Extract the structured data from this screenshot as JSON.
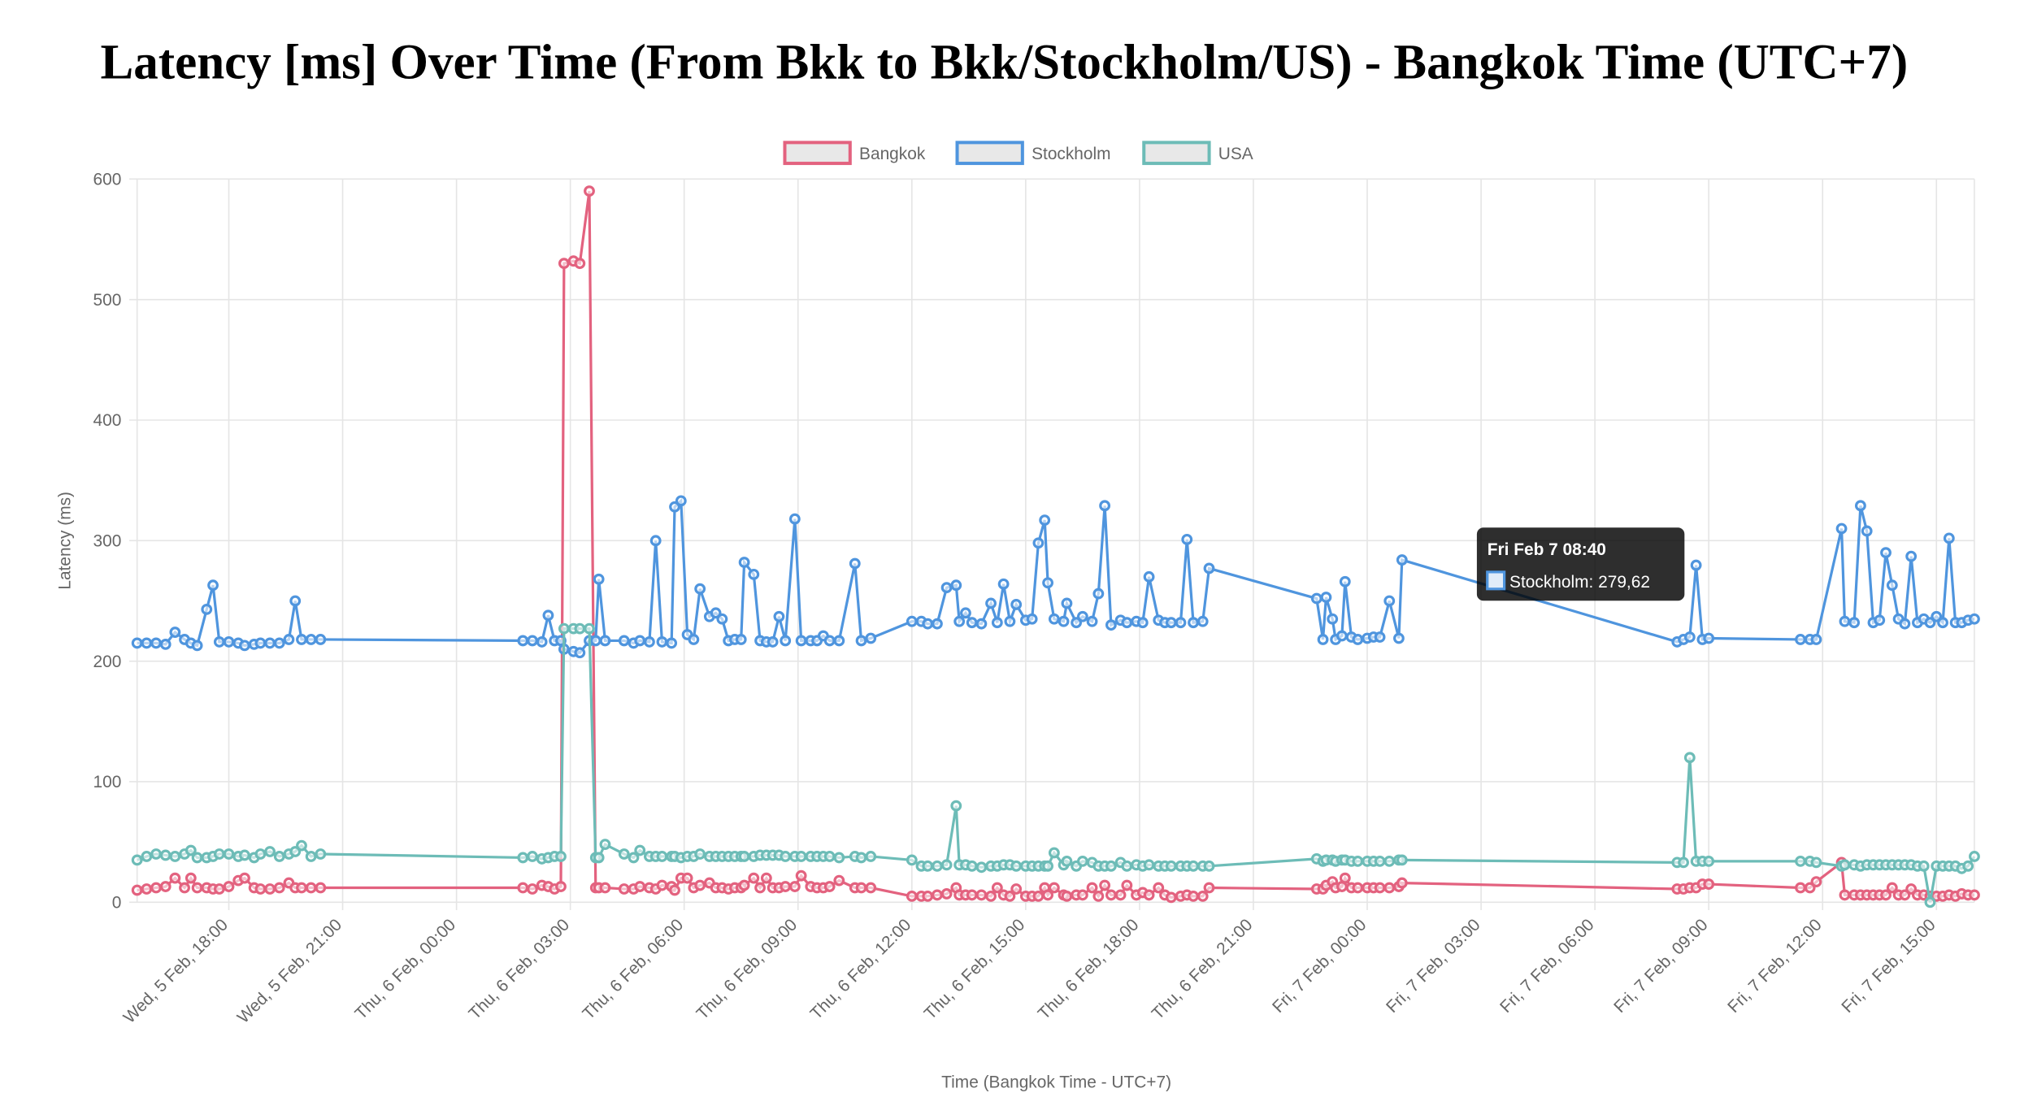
{
  "chart_data": {
    "type": "line",
    "title": "Latency [ms] Over Time (From Bkk to Bkk/Stockholm/US) - Bangkok Time (UTC+7)",
    "x_label": "Time (Bangkok Time - UTC+7)",
    "y_label": "Latency (ms)",
    "legend": "top",
    "grid": true,
    "x": [
      "Feb 5 15:35",
      "Feb 5 15:50",
      "Feb 5 16:05",
      "Feb 5 16:20",
      "Feb 5 16:35",
      "Feb 5 16:50",
      "Feb 5 17:00",
      "Feb 5 17:10",
      "Feb 5 17:25",
      "Feb 5 17:35",
      "Feb 5 17:45",
      "Feb 5 18:00",
      "Feb 5 18:15",
      "Feb 5 18:25",
      "Feb 5 18:40",
      "Feb 5 18:50",
      "Feb 5 19:05",
      "Feb 5 19:20",
      "Feb 5 19:35",
      "Feb 5 19:45",
      "Feb 5 19:55",
      "Feb 5 20:10",
      "Feb 5 20:25",
      "Feb 6 01:45",
      "Feb 6 02:00",
      "Feb 6 02:15",
      "Feb 6 02:25",
      "Feb 6 02:35",
      "Feb 6 02:45",
      "Feb 6 02:50",
      "Feb 6 03:05",
      "Feb 6 03:15",
      "Feb 6 03:30",
      "Feb 6 03:40",
      "Feb 6 03:45",
      "Feb 6 03:55",
      "Feb 6 04:25",
      "Feb 6 04:40",
      "Feb 6 04:50",
      "Feb 6 05:05",
      "Feb 6 05:15",
      "Feb 6 05:25",
      "Feb 6 05:40",
      "Feb 6 05:45",
      "Feb 6 05:55",
      "Feb 6 06:05",
      "Feb 6 06:15",
      "Feb 6 06:25",
      "Feb 6 06:40",
      "Feb 6 06:50",
      "Feb 6 07:00",
      "Feb 6 07:10",
      "Feb 6 07:20",
      "Feb 6 07:30",
      "Feb 6 07:35",
      "Feb 6 07:50",
      "Feb 6 08:00",
      "Feb 6 08:10",
      "Feb 6 08:20",
      "Feb 6 08:30",
      "Feb 6 08:40",
      "Feb 6 08:55",
      "Feb 6 09:05",
      "Feb 6 09:20",
      "Feb 6 09:30",
      "Feb 6 09:40",
      "Feb 6 09:50",
      "Feb 6 10:05",
      "Feb 6 10:30",
      "Feb 6 10:40",
      "Feb 6 10:55",
      "Feb 6 12:00",
      "Feb 6 12:15",
      "Feb 6 12:25",
      "Feb 6 12:40",
      "Feb 6 12:55",
      "Feb 6 13:10",
      "Feb 6 13:15",
      "Feb 6 13:25",
      "Feb 6 13:35",
      "Feb 6 13:50",
      "Feb 6 14:05",
      "Feb 6 14:15",
      "Feb 6 14:25",
      "Feb 6 14:35",
      "Feb 6 14:45",
      "Feb 6 15:00",
      "Feb 6 15:10",
      "Feb 6 15:20",
      "Feb 6 15:30",
      "Feb 6 15:35",
      "Feb 6 15:45",
      "Feb 6 16:00",
      "Feb 6 16:05",
      "Feb 6 16:20",
      "Feb 6 16:30",
      "Feb 6 16:45",
      "Feb 6 16:55",
      "Feb 6 17:05",
      "Feb 6 17:15",
      "Feb 6 17:30",
      "Feb 6 17:40",
      "Feb 6 17:55",
      "Feb 6 18:05",
      "Feb 6 18:15",
      "Feb 6 18:30",
      "Feb 6 18:40",
      "Feb 6 18:50",
      "Feb 6 19:05",
      "Feb 6 19:15",
      "Feb 6 19:25",
      "Feb 6 19:40",
      "Feb 6 19:50",
      "Feb 6 22:40",
      "Feb 6 22:50",
      "Feb 6 22:55",
      "Feb 6 23:05",
      "Feb 6 23:10",
      "Feb 6 23:20",
      "Feb 6 23:25",
      "Feb 6 23:35",
      "Feb 6 23:45",
      "Feb 7 00:00",
      "Feb 7 00:10",
      "Feb 7 00:20",
      "Feb 7 00:35",
      "Feb 7 00:50",
      "Feb 7 00:55",
      "Feb 7 08:10",
      "Feb 7 08:20",
      "Feb 7 08:30",
      "Feb 7 08:40",
      "Feb 7 08:50",
      "Feb 7 09:00",
      "Feb 7 11:25",
      "Feb 7 11:40",
      "Feb 7 11:50",
      "Feb 7 12:30",
      "Feb 7 12:35",
      "Feb 7 12:50",
      "Feb 7 13:00",
      "Feb 7 13:10",
      "Feb 7 13:20",
      "Feb 7 13:30",
      "Feb 7 13:40",
      "Feb 7 13:50",
      "Feb 7 14:00",
      "Feb 7 14:10",
      "Feb 7 14:20",
      "Feb 7 14:30",
      "Feb 7 14:40",
      "Feb 7 14:50",
      "Feb 7 15:00",
      "Feb 7 15:10",
      "Feb 7 15:20",
      "Feb 7 15:30",
      "Feb 7 15:40",
      "Feb 7 15:50",
      "Feb 7 16:00"
    ],
    "series": [
      {
        "name": "Bangkok",
        "color": "#e3627f",
        "values": [
          10,
          11,
          12,
          13,
          20,
          12,
          20,
          12,
          12,
          11,
          11,
          13,
          18,
          20,
          12,
          11,
          11,
          12,
          16,
          12,
          12,
          12,
          12,
          12,
          11,
          14,
          13,
          11,
          13,
          530,
          532,
          530,
          590,
          12,
          12,
          12,
          11,
          11,
          13,
          12,
          11,
          14,
          13,
          10,
          20,
          20,
          12,
          14,
          16,
          12,
          12,
          11,
          12,
          12,
          14,
          20,
          12,
          20,
          12,
          12,
          13,
          13,
          22,
          13,
          12,
          12,
          13,
          18,
          12,
          12,
          12,
          5,
          5,
          5,
          6,
          7,
          12,
          6,
          6,
          6,
          6,
          5,
          12,
          6,
          5,
          11,
          5,
          5,
          5,
          12,
          6,
          12,
          6,
          5,
          6,
          6,
          12,
          5,
          14,
          6,
          6,
          14,
          6,
          8,
          6,
          12,
          6,
          4,
          5,
          6,
          5,
          5,
          12,
          11,
          11,
          14,
          17,
          12,
          13,
          20,
          12,
          12,
          12,
          12,
          12,
          12,
          13,
          16,
          11,
          11,
          12,
          12,
          15,
          15,
          12,
          12,
          17,
          33,
          6,
          6,
          6,
          6,
          6,
          6,
          6,
          12,
          6,
          6,
          11,
          6,
          6,
          5,
          5,
          5,
          6,
          5,
          7,
          6,
          6
        ]
      },
      {
        "name": "Stockholm",
        "color": "#4f95de",
        "values": [
          215,
          215,
          215,
          214,
          224,
          218,
          215,
          213,
          243,
          263,
          216,
          216,
          215,
          213,
          214,
          215,
          215,
          215,
          218,
          250,
          218,
          218,
          218,
          217,
          217,
          216,
          238,
          217,
          217,
          210,
          208,
          207,
          217,
          217,
          268,
          217,
          217,
          215,
          217,
          216,
          300,
          216,
          215,
          328,
          333,
          222,
          218,
          260,
          237,
          240,
          235,
          217,
          218,
          218,
          282,
          272,
          217,
          216,
          216,
          237,
          217,
          318,
          217,
          217,
          217,
          221,
          217,
          217,
          281,
          217,
          219,
          233,
          233,
          231,
          231,
          261,
          263,
          233,
          240,
          232,
          231,
          248,
          232,
          264,
          233,
          247,
          234,
          235,
          298,
          317,
          265,
          235,
          233,
          248,
          232,
          237,
          233,
          256,
          329,
          230,
          234,
          232,
          233,
          232,
          270,
          234,
          232,
          232,
          232,
          301,
          232,
          233,
          277,
          252,
          218,
          253,
          235,
          218,
          221,
          266,
          220,
          218,
          219,
          220,
          220,
          250,
          219,
          284,
          216,
          218,
          220,
          279.62,
          218,
          219,
          218,
          218,
          218,
          310,
          233,
          232,
          329,
          308,
          232,
          234,
          290,
          263,
          235,
          231,
          287,
          232,
          235,
          232,
          237,
          232,
          302,
          232,
          232,
          234,
          235
        ]
      },
      {
        "name": "USA",
        "color": "#6dbcb7",
        "values": [
          35,
          38,
          40,
          39,
          38,
          40,
          43,
          37,
          37,
          38,
          40,
          40,
          38,
          39,
          37,
          40,
          42,
          38,
          40,
          42,
          47,
          38,
          40,
          37,
          38,
          36,
          37,
          38,
          38,
          227,
          227,
          227,
          227,
          37,
          37,
          48,
          40,
          37,
          43,
          38,
          38,
          38,
          38,
          38,
          37,
          38,
          38,
          40,
          38,
          38,
          38,
          38,
          38,
          38,
          38,
          38,
          39,
          39,
          39,
          39,
          38,
          38,
          38,
          38,
          38,
          38,
          38,
          37,
          38,
          37,
          38,
          35,
          30,
          30,
          30,
          31,
          80,
          31,
          31,
          30,
          29,
          30,
          30,
          31,
          31,
          30,
          30,
          30,
          30,
          30,
          30,
          41,
          31,
          34,
          30,
          34,
          33,
          30,
          30,
          30,
          33,
          30,
          31,
          30,
          31,
          30,
          30,
          30,
          30,
          30,
          30,
          30,
          30,
          36,
          34,
          35,
          35,
          34,
          35,
          35,
          34,
          34,
          34,
          34,
          34,
          34,
          35,
          35,
          33,
          33,
          120,
          34,
          34,
          34,
          34,
          34,
          33,
          30,
          31,
          31,
          30,
          31,
          31,
          31,
          31,
          31,
          31,
          31,
          31,
          30,
          30,
          0,
          30,
          30,
          30,
          30,
          28,
          30,
          38
        ]
      }
    ],
    "xlim": [
      "Feb 5 15:35",
      "Feb 7 16:00"
    ],
    "xticks": [
      {
        "value": "Feb 5 18:00",
        "label": "Wed, 5 Feb, 18:00"
      },
      {
        "value": "Feb 5 21:00",
        "label": "Wed, 5 Feb, 21:00"
      },
      {
        "value": "Feb 6 00:00",
        "label": "Thu, 6 Feb, 00:00"
      },
      {
        "value": "Feb 6 03:00",
        "label": "Thu, 6 Feb, 03:00"
      },
      {
        "value": "Feb 6 06:00",
        "label": "Thu, 6 Feb, 06:00"
      },
      {
        "value": "Feb 6 09:00",
        "label": "Thu, 6 Feb, 09:00"
      },
      {
        "value": "Feb 6 12:00",
        "label": "Thu, 6 Feb, 12:00"
      },
      {
        "value": "Feb 6 15:00",
        "label": "Thu, 6 Feb, 15:00"
      },
      {
        "value": "Feb 6 18:00",
        "label": "Thu, 6 Feb, 18:00"
      },
      {
        "value": "Feb 6 21:00",
        "label": "Thu, 6 Feb, 21:00"
      },
      {
        "value": "Feb 7 00:00",
        "label": "Fri, 7 Feb, 00:00"
      },
      {
        "value": "Feb 7 03:00",
        "label": "Fri, 7 Feb, 03:00"
      },
      {
        "value": "Feb 7 06:00",
        "label": "Fri, 7 Feb, 06:00"
      },
      {
        "value": "Feb 7 09:00",
        "label": "Fri, 7 Feb, 09:00"
      },
      {
        "value": "Feb 7 12:00",
        "label": "Fri, 7 Feb, 12:00"
      },
      {
        "value": "Feb 7 15:00",
        "label": "Fri, 7 Feb, 15:00"
      }
    ],
    "ylim": [
      0,
      600
    ],
    "yticks": [
      0,
      100,
      200,
      300,
      400,
      500,
      600
    ],
    "tooltip": {
      "title": "Fri Feb 7 08:40",
      "text": "Stockholm: 279,62"
    }
  }
}
